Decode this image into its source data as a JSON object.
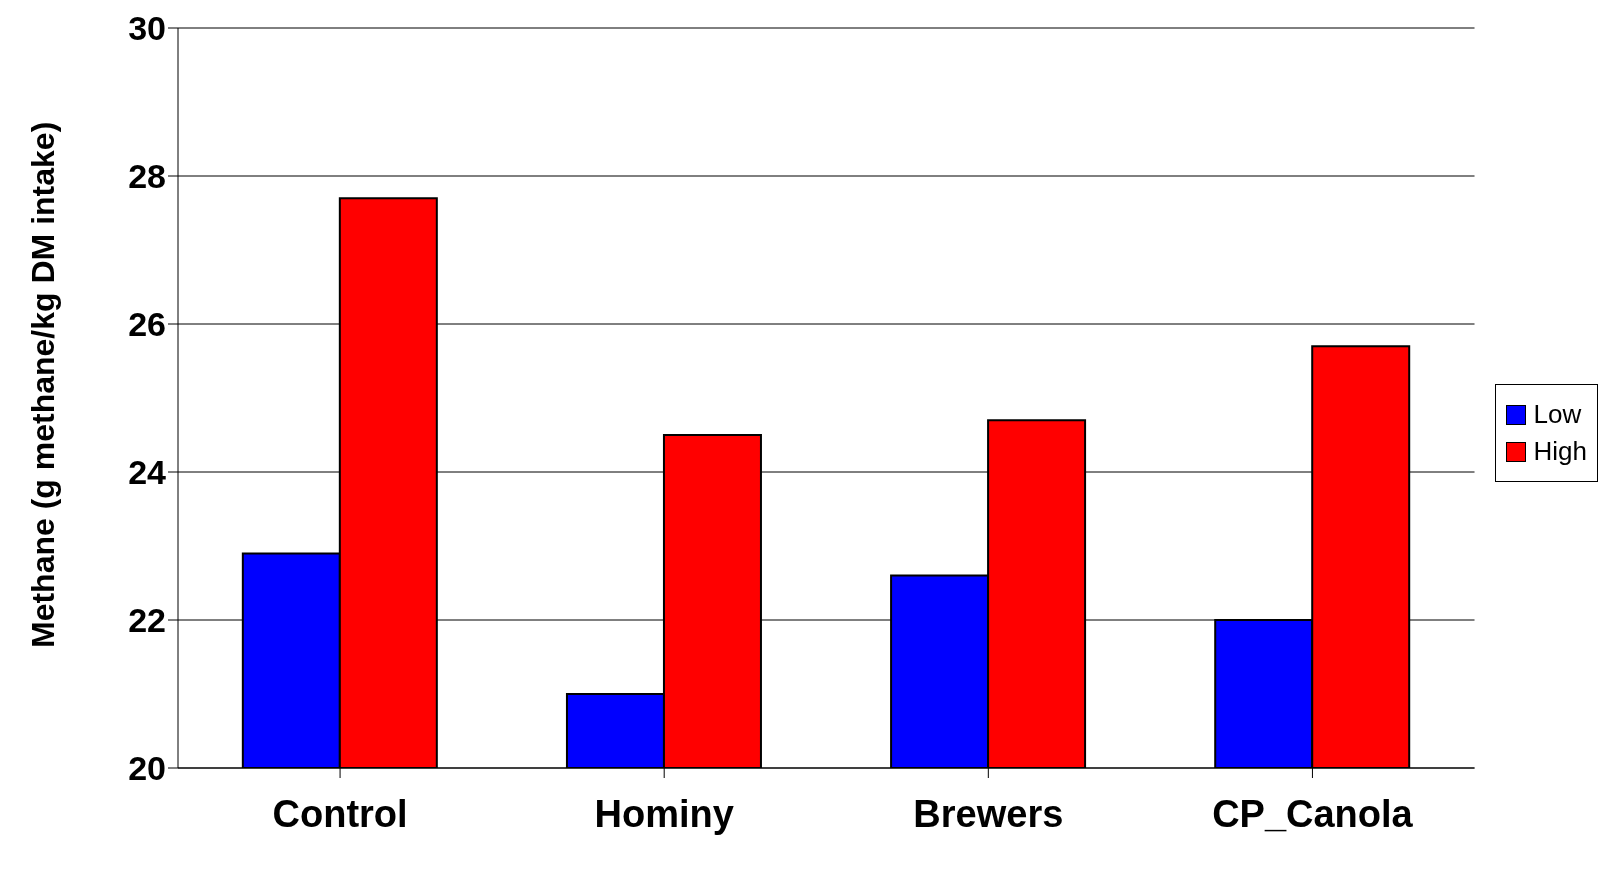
{
  "chart_data": {
    "type": "bar",
    "ylabel": "Methane (g methane/kg DM intake)",
    "categories": [
      "Control",
      "Hominy",
      "Brewers",
      "CP_Canola"
    ],
    "series": [
      {
        "name": "Low",
        "color": "#0000ff",
        "values": [
          22.9,
          21.0,
          22.6,
          22.0
        ]
      },
      {
        "name": "High",
        "color": "#ff0000",
        "values": [
          27.7,
          24.5,
          24.7,
          25.7
        ]
      }
    ],
    "ylim": [
      20,
      30
    ],
    "yticks": [
      20,
      22,
      24,
      26,
      28,
      30
    ],
    "grid": "y",
    "legend": "right"
  }
}
